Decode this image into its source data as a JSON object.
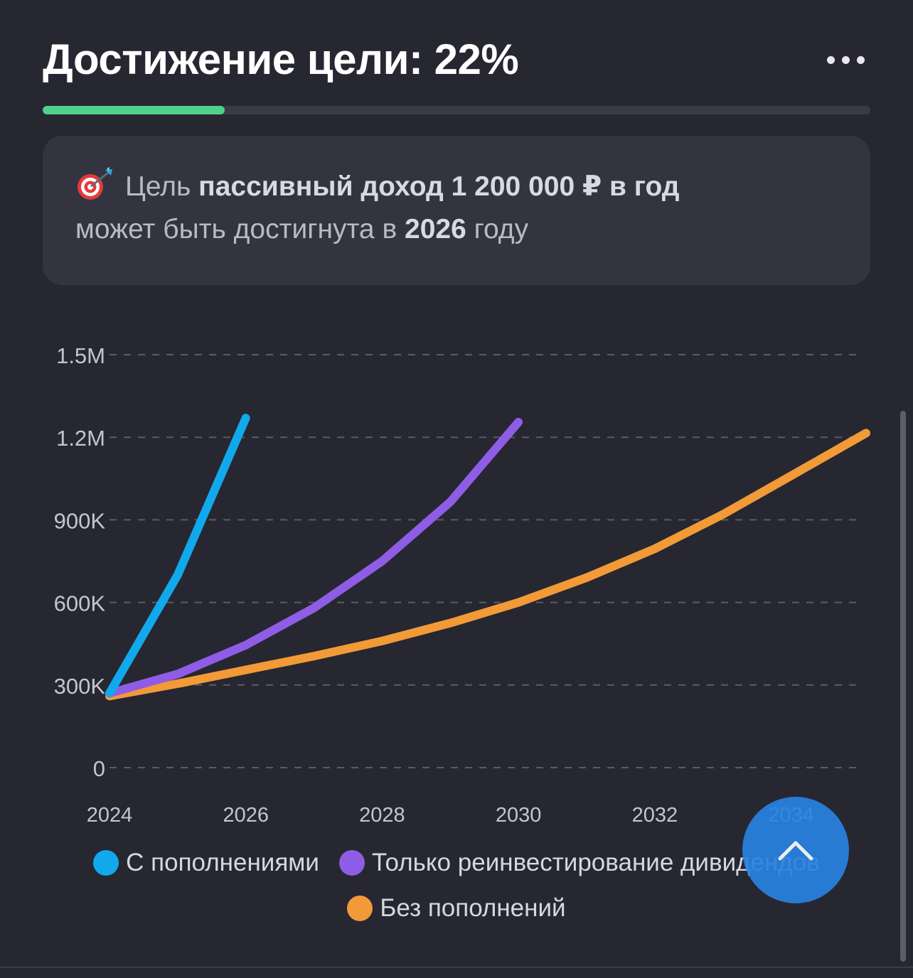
{
  "header": {
    "title": "Достижение цели: 22%",
    "menu_icon": "more-horizontal-icon"
  },
  "progress": {
    "value_percent": 22,
    "color": "#4fd18b"
  },
  "goal_card": {
    "icon": "target-dart-icon",
    "text_prefix": "Цель",
    "goal_bold": "пассивный доход 1 200 000 ₽ в год",
    "text_middle": "может быть достигнута в",
    "year_bold": "2026",
    "text_suffix": "году"
  },
  "chart_data": {
    "type": "line",
    "x_ticks": [
      "2024",
      "2026",
      "2028",
      "2030",
      "2032",
      "2034"
    ],
    "y_ticks": [
      "0",
      "300K",
      "600K",
      "900K",
      "1.2M",
      "1.5M"
    ],
    "xlim": [
      2024,
      2035.1
    ],
    "ylim": [
      0,
      1500000
    ],
    "grid": true,
    "legend_position": "bottom",
    "series": [
      {
        "name": "С пополнениями",
        "color": "#12a8ec",
        "x": [
          2024,
          2025,
          2026
        ],
        "y": [
          270000,
          700000,
          1270000
        ]
      },
      {
        "name": "Только реинвестирование дивидендов",
        "color": "#8f5de5",
        "x": [
          2024,
          2025,
          2026,
          2027,
          2028,
          2029,
          2030
        ],
        "y": [
          270000,
          340000,
          445000,
          580000,
          750000,
          965000,
          1255000
        ]
      },
      {
        "name": "Без пополнений",
        "color": "#f29a37",
        "x": [
          2024,
          2025,
          2026,
          2027,
          2028,
          2029,
          2030,
          2031,
          2032,
          2033,
          2034,
          2035.1
        ],
        "y": [
          260000,
          305000,
          355000,
          405000,
          460000,
          525000,
          600000,
          690000,
          795000,
          920000,
          1060000,
          1215000
        ]
      }
    ]
  },
  "scroll_top": {
    "icon": "chevron-up-icon"
  }
}
